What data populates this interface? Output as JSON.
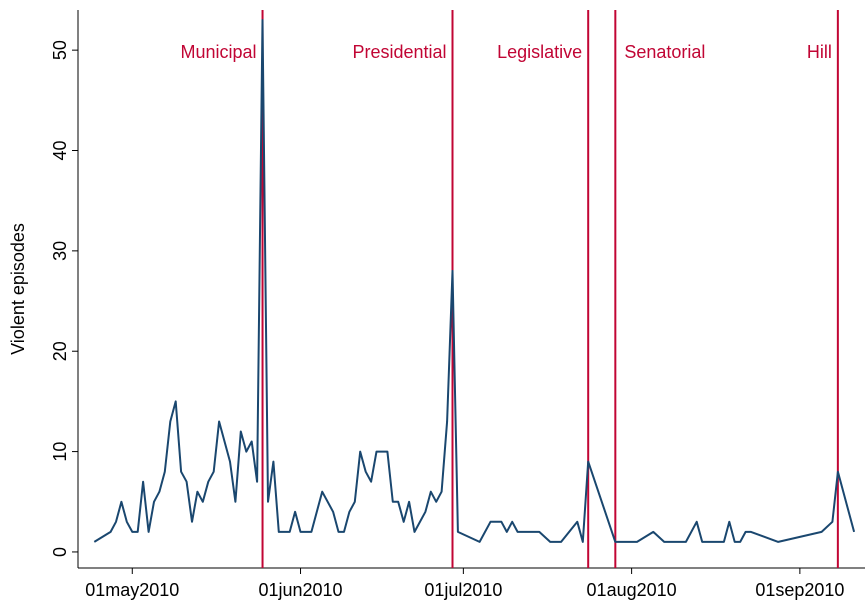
{
  "chart_data": {
    "type": "line",
    "ylabel": "Violent episodes",
    "x": [
      "2010-04-24",
      "2010-04-27",
      "2010-04-28",
      "2010-04-29",
      "2010-04-30",
      "2010-05-01",
      "2010-05-02",
      "2010-05-03",
      "2010-05-04",
      "2010-05-05",
      "2010-05-06",
      "2010-05-07",
      "2010-05-08",
      "2010-05-09",
      "2010-05-10",
      "2010-05-11",
      "2010-05-12",
      "2010-05-13",
      "2010-05-14",
      "2010-05-15",
      "2010-05-16",
      "2010-05-17",
      "2010-05-19",
      "2010-05-20",
      "2010-05-21",
      "2010-05-22",
      "2010-05-23",
      "2010-05-24",
      "2010-05-25",
      "2010-05-26",
      "2010-05-27",
      "2010-05-28",
      "2010-05-30",
      "2010-05-31",
      "2010-06-01",
      "2010-06-03",
      "2010-06-05",
      "2010-06-07",
      "2010-06-08",
      "2010-06-09",
      "2010-06-10",
      "2010-06-11",
      "2010-06-12",
      "2010-06-13",
      "2010-06-14",
      "2010-06-15",
      "2010-06-17",
      "2010-06-18",
      "2010-06-19",
      "2010-06-20",
      "2010-06-21",
      "2010-06-22",
      "2010-06-24",
      "2010-06-25",
      "2010-06-26",
      "2010-06-27",
      "2010-06-28",
      "2010-06-29",
      "2010-06-30",
      "2010-07-04",
      "2010-07-06",
      "2010-07-08",
      "2010-07-09",
      "2010-07-10",
      "2010-07-11",
      "2010-07-15",
      "2010-07-17",
      "2010-07-19",
      "2010-07-22",
      "2010-07-23",
      "2010-07-24",
      "2010-07-29",
      "2010-08-02",
      "2010-08-05",
      "2010-08-07",
      "2010-08-11",
      "2010-08-13",
      "2010-08-14",
      "2010-08-18",
      "2010-08-19",
      "2010-08-20",
      "2010-08-21",
      "2010-08-22",
      "2010-08-23",
      "2010-08-28",
      "2010-09-05",
      "2010-09-07",
      "2010-09-08",
      "2010-09-11"
    ],
    "series": [
      {
        "name": "Violent episodes",
        "color": "#1a476f",
        "values": [
          1,
          2,
          3,
          5,
          3,
          2,
          2,
          7,
          2,
          5,
          6,
          8,
          13,
          15,
          8,
          7,
          3,
          6,
          5,
          7,
          8,
          13,
          9,
          5,
          12,
          10,
          11,
          7,
          53,
          5,
          9,
          2,
          2,
          4,
          2,
          2,
          6,
          4,
          2,
          2,
          4,
          5,
          10,
          8,
          7,
          10,
          10,
          5,
          5,
          3,
          5,
          2,
          4,
          6,
          5,
          6,
          13,
          28,
          2,
          1,
          3,
          3,
          2,
          3,
          2,
          2,
          1,
          1,
          3,
          1,
          9,
          1,
          1,
          2,
          1,
          1,
          3,
          1,
          1,
          3,
          1,
          1,
          2,
          2,
          1,
          2,
          3,
          8,
          2
        ]
      }
    ],
    "xlim": [
      "2010-04-21",
      "2010-09-13"
    ],
    "xticks": [
      {
        "value": "2010-05-01",
        "label": "01may2010"
      },
      {
        "value": "2010-06-01",
        "label": "01jun2010"
      },
      {
        "value": "2010-07-01",
        "label": "01jul2010"
      },
      {
        "value": "2010-08-01",
        "label": "01aug2010"
      },
      {
        "value": "2010-09-01",
        "label": "01sep2010"
      }
    ],
    "ylim": [
      -1.6,
      54
    ],
    "yticks": [
      0,
      10,
      20,
      30,
      40,
      50
    ],
    "vlines": [
      {
        "x": "2010-05-25",
        "label": "Municipal",
        "side": "left"
      },
      {
        "x": "2010-06-29",
        "label": "Presidential",
        "side": "left"
      },
      {
        "x": "2010-07-24",
        "label": "Legislative",
        "side": "left"
      },
      {
        "x": "2010-07-29",
        "label": "Senatorial",
        "side": "right"
      },
      {
        "x": "2010-09-08",
        "label": "Hill",
        "side": "left"
      }
    ],
    "vline_color": "#c10534"
  }
}
